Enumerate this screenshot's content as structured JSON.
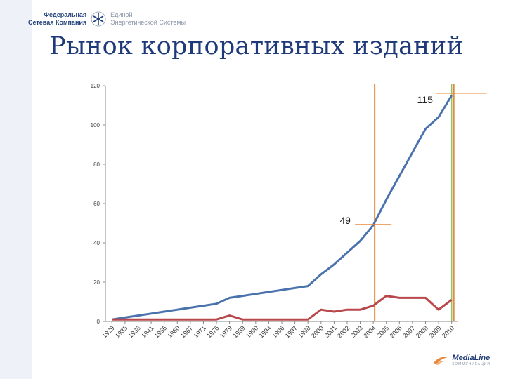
{
  "header": {
    "logo_left_line1": "Федеральная",
    "logo_left_line2": "Сетевая Компания",
    "logo_right_line1": "Единой",
    "logo_right_line2": "Энергетической Системы"
  },
  "slide_title": "Рынок корпоративных изданий",
  "footer_logo": {
    "name": "MediaLine",
    "sub": "КОММУНИКАЦИИ"
  },
  "colors": {
    "series1": "#4a72ad",
    "series2": "#b8484c",
    "marker": "#e8883a",
    "marker_green": "#8cc46a",
    "axis": "#888888",
    "title": "#1f3a78"
  },
  "chart_data": {
    "type": "line",
    "categories": [
      "1929",
      "1935",
      "1938",
      "1941",
      "1956",
      "1960",
      "1967",
      "1971",
      "1976",
      "1979",
      "1989",
      "1990",
      "1994",
      "1996",
      "1997",
      "1998",
      "2000",
      "2001",
      "2002",
      "2003",
      "2004",
      "2005",
      "2006",
      "2007",
      "2008",
      "2009",
      "2010"
    ],
    "series": [
      {
        "values": [
          1,
          2,
          3,
          4,
          5,
          6,
          7,
          8,
          9,
          12,
          13,
          14,
          15,
          16,
          17,
          18,
          24,
          29,
          35,
          41,
          49,
          62,
          74,
          86,
          98,
          104,
          115
        ]
      },
      {
        "values": [
          1,
          1,
          1,
          1,
          1,
          1,
          1,
          1,
          1,
          3,
          1,
          1,
          1,
          1,
          1,
          1,
          6,
          5,
          6,
          6,
          8,
          13,
          12,
          12,
          12,
          6,
          11
        ]
      }
    ],
    "ylim": [
      0,
      120
    ],
    "yticks": [
      0,
      20,
      40,
      60,
      80,
      100,
      120
    ],
    "grid": false,
    "annotations": [
      {
        "category": "2004",
        "value": 49,
        "label": "49"
      },
      {
        "category": "2010",
        "value": 115,
        "label": "115"
      }
    ]
  }
}
